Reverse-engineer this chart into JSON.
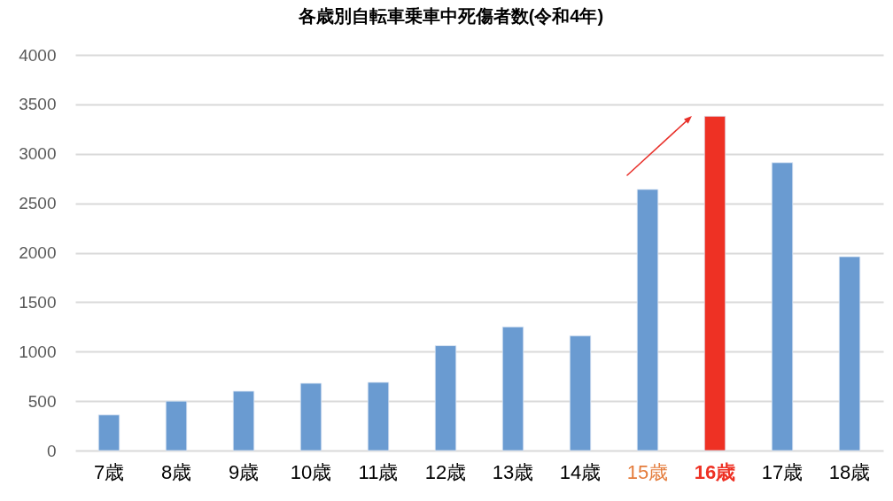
{
  "chart_data": {
    "type": "bar",
    "title": "各歳別自転車乗車中死傷者数(令和4年)",
    "categories": [
      "7歳",
      "8歳",
      "9歳",
      "10歳",
      "11歳",
      "12歳",
      "13歳",
      "14歳",
      "15歳",
      "16歳",
      "17歳",
      "18歳"
    ],
    "values": [
      360,
      500,
      600,
      680,
      690,
      1060,
      1250,
      1160,
      2640,
      3380,
      2910,
      1960
    ],
    "colors": [
      "#6a9bd1",
      "#6a9bd1",
      "#6a9bd1",
      "#6a9bd1",
      "#6a9bd1",
      "#6a9bd1",
      "#6a9bd1",
      "#6a9bd1",
      "#6a9bd1",
      "#ee3124",
      "#6a9bd1",
      "#6a9bd1"
    ],
    "ylim": [
      0,
      4000
    ],
    "yticks": [
      0,
      500,
      1000,
      1500,
      2000,
      2500,
      3000,
      3500,
      4000
    ],
    "grid": "y"
  }
}
